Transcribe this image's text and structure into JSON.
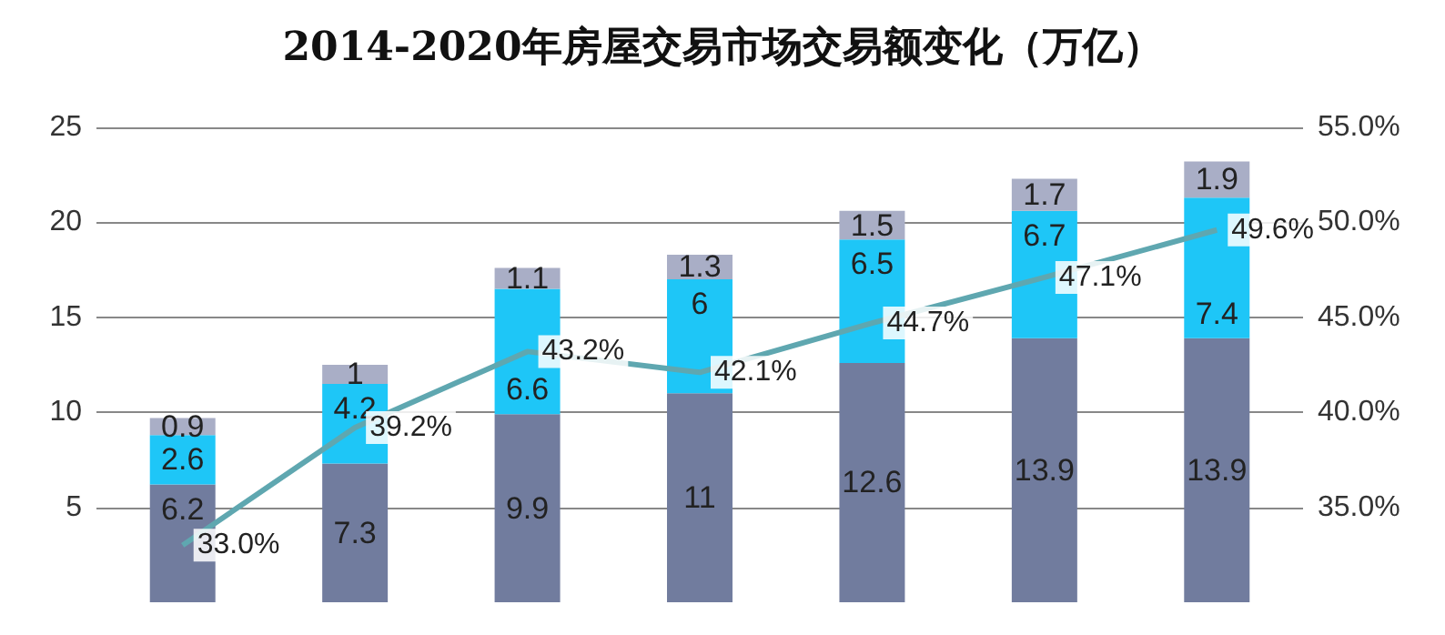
{
  "chart_data": {
    "type": "bar",
    "title": "2014-2020年房屋交易市场交易额变化（万亿）",
    "categories": [
      null,
      null,
      null,
      null,
      null,
      null,
      null
    ],
    "stacked": true,
    "series": [
      {
        "color": "#717c9e",
        "values": [
          6.2,
          7.3,
          9.9,
          11,
          12.6,
          13.9,
          13.9
        ]
      },
      {
        "color": "#1ec6f7",
        "values": [
          2.6,
          4.2,
          6.6,
          6,
          6.5,
          6.7,
          7.4
        ]
      },
      {
        "color": "#a9aec6",
        "values": [
          0.9,
          1,
          1.1,
          1.3,
          1.5,
          1.7,
          1.9
        ]
      },
      {
        "type": "line",
        "axis": "y2",
        "color": "#5fa7b0",
        "values": [
          33.0,
          39.2,
          43.2,
          42.1,
          44.7,
          47.1,
          49.6
        ],
        "value_labels": [
          "33.0%",
          "39.2%",
          "43.2%",
          "42.1%",
          "44.7%",
          "47.1%",
          "49.6%"
        ]
      }
    ],
    "data_labels": true,
    "ylim": [
      0,
      25
    ],
    "yticks": [
      5,
      10,
      15,
      20,
      25
    ],
    "y2lim": [
      30,
      55
    ],
    "y2ticks": [
      {
        "value": 35,
        "label": "35.0%"
      },
      {
        "value": 40,
        "label": "40.0%"
      },
      {
        "value": 45,
        "label": "45.0%"
      },
      {
        "value": 50,
        "label": "50.0%"
      },
      {
        "value": 55,
        "label": "55.0%"
      }
    ],
    "grid": "y",
    "marker": "none",
    "line_style": "solid"
  }
}
